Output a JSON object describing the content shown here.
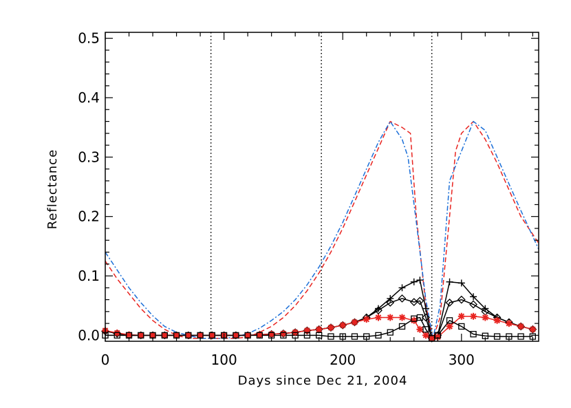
{
  "chart_data": {
    "type": "line",
    "xlabel": "Days since Dec 21, 2004",
    "ylabel": "Reflectance",
    "xlim": [
      0,
      365
    ],
    "ylim": [
      -0.01,
      0.51
    ],
    "grid": false,
    "x_ticks": [
      0,
      100,
      200,
      300
    ],
    "x_tick_labels": [
      "0",
      "100",
      "200",
      "300"
    ],
    "y_ticks": [
      0.0,
      0.1,
      0.2,
      0.3,
      0.4,
      0.5
    ],
    "y_tick_labels": [
      "0.0",
      "0.1",
      "0.2",
      "0.3",
      "0.4",
      "0.5"
    ],
    "vlines": [
      89,
      182,
      275
    ],
    "series": [
      {
        "style": "dashed",
        "color": "#e8231f",
        "marker": "none",
        "x": [
          0,
          10,
          20,
          30,
          40,
          50,
          60,
          70,
          80,
          90,
          100,
          110,
          120,
          130,
          140,
          150,
          160,
          170,
          180,
          190,
          200,
          210,
          220,
          230,
          240,
          250,
          257,
          262,
          270,
          276,
          282,
          290,
          295,
          300,
          310,
          320,
          330,
          340,
          350,
          365
        ],
        "y": [
          0.125,
          0.095,
          0.07,
          0.045,
          0.025,
          0.01,
          0.0,
          -0.005,
          -0.005,
          -0.005,
          -0.005,
          -0.005,
          -0.003,
          0.005,
          0.015,
          0.03,
          0.05,
          0.075,
          0.105,
          0.14,
          0.18,
          0.225,
          0.27,
          0.315,
          0.36,
          0.35,
          0.34,
          0.2,
          0.05,
          -0.005,
          0.03,
          0.2,
          0.31,
          0.34,
          0.36,
          0.33,
          0.29,
          0.245,
          0.2,
          0.155
        ]
      },
      {
        "style": "dash-dot",
        "color": "#1b6fd8",
        "marker": "none",
        "x": [
          0,
          10,
          20,
          30,
          40,
          50,
          60,
          70,
          80,
          90,
          100,
          110,
          120,
          130,
          140,
          150,
          160,
          170,
          180,
          190,
          200,
          210,
          220,
          230,
          240,
          250,
          255,
          262,
          270,
          276,
          282,
          290,
          300,
          310,
          320,
          330,
          340,
          350,
          365
        ],
        "y": [
          0.14,
          0.11,
          0.08,
          0.055,
          0.033,
          0.015,
          0.005,
          0.0,
          -0.005,
          -0.005,
          -0.005,
          -0.003,
          0.003,
          0.012,
          0.025,
          0.04,
          0.06,
          0.085,
          0.115,
          0.15,
          0.19,
          0.235,
          0.28,
          0.325,
          0.36,
          0.33,
          0.3,
          0.19,
          0.06,
          -0.005,
          0.05,
          0.26,
          0.31,
          0.36,
          0.345,
          0.3,
          0.255,
          0.21,
          0.145
        ]
      },
      {
        "style": "solid",
        "color": "#000000",
        "marker": "plus",
        "x": [
          0,
          10,
          20,
          30,
          40,
          50,
          60,
          70,
          80,
          90,
          100,
          110,
          120,
          130,
          140,
          150,
          160,
          170,
          180,
          190,
          200,
          210,
          220,
          230,
          240,
          250,
          260,
          265,
          270,
          275,
          280,
          290,
          300,
          310,
          320,
          330,
          340,
          350,
          360
        ],
        "y": [
          0.007,
          0.003,
          0.0,
          0.0,
          0.0,
          0.0,
          0.0,
          0.0,
          0.0,
          0.0,
          0.0,
          0.0,
          0.0,
          0.001,
          0.002,
          0.003,
          0.005,
          0.008,
          0.01,
          0.013,
          0.017,
          0.022,
          0.03,
          0.045,
          0.062,
          0.08,
          0.09,
          0.093,
          0.045,
          -0.005,
          0.0,
          0.09,
          0.088,
          0.065,
          0.045,
          0.03,
          0.022,
          0.015,
          0.01
        ]
      },
      {
        "style": "solid",
        "color": "#000000",
        "marker": "diamond",
        "x": [
          0,
          10,
          20,
          30,
          40,
          50,
          60,
          70,
          80,
          90,
          100,
          110,
          120,
          130,
          140,
          150,
          160,
          170,
          180,
          190,
          200,
          210,
          220,
          230,
          240,
          250,
          260,
          265,
          270,
          275,
          280,
          290,
          300,
          310,
          320,
          330,
          340,
          350,
          360
        ],
        "y": [
          0.007,
          0.003,
          0.0,
          0.0,
          0.0,
          0.0,
          0.0,
          0.0,
          0.0,
          0.0,
          0.0,
          0.0,
          0.0,
          0.001,
          0.002,
          0.003,
          0.005,
          0.008,
          0.01,
          0.013,
          0.017,
          0.022,
          0.03,
          0.042,
          0.055,
          0.062,
          0.056,
          0.058,
          0.03,
          -0.005,
          0.0,
          0.055,
          0.06,
          0.052,
          0.04,
          0.03,
          0.022,
          0.015,
          0.01
        ]
      },
      {
        "style": "solid",
        "color": "#e8231f",
        "marker": "star",
        "x": [
          0,
          10,
          20,
          30,
          40,
          50,
          60,
          70,
          80,
          90,
          100,
          110,
          120,
          130,
          140,
          150,
          160,
          170,
          180,
          190,
          200,
          210,
          220,
          230,
          240,
          250,
          260,
          265,
          270,
          275,
          280,
          290,
          300,
          310,
          320,
          330,
          340,
          350,
          360
        ],
        "y": [
          0.008,
          0.004,
          0.001,
          0.0,
          0.0,
          0.0,
          0.0,
          0.0,
          0.0,
          0.0,
          0.0,
          0.0,
          0.0,
          0.001,
          0.002,
          0.003,
          0.005,
          0.008,
          0.01,
          0.013,
          0.017,
          0.022,
          0.027,
          0.03,
          0.03,
          0.03,
          0.025,
          0.01,
          0.0,
          -0.005,
          -0.003,
          0.015,
          0.032,
          0.032,
          0.03,
          0.025,
          0.02,
          0.015,
          0.01
        ]
      },
      {
        "style": "solid",
        "color": "#000000",
        "marker": "square",
        "x": [
          0,
          10,
          20,
          30,
          40,
          50,
          60,
          70,
          80,
          90,
          100,
          110,
          120,
          130,
          140,
          150,
          160,
          170,
          180,
          190,
          200,
          210,
          220,
          230,
          240,
          250,
          260,
          265,
          270,
          275,
          280,
          290,
          300,
          310,
          320,
          330,
          340,
          350,
          360
        ],
        "y": [
          0.0,
          0.0,
          0.0,
          0.0,
          0.0,
          0.0,
          0.0,
          0.0,
          0.0,
          0.0,
          0.0,
          0.0,
          0.0,
          0.0,
          0.0,
          0.0,
          0.0,
          0.0,
          0.0,
          -0.002,
          -0.002,
          -0.002,
          -0.002,
          0.0,
          0.005,
          0.015,
          0.028,
          0.03,
          0.01,
          -0.005,
          0.0,
          0.025,
          0.015,
          0.002,
          -0.001,
          -0.002,
          -0.002,
          -0.002,
          -0.002
        ]
      }
    ]
  }
}
